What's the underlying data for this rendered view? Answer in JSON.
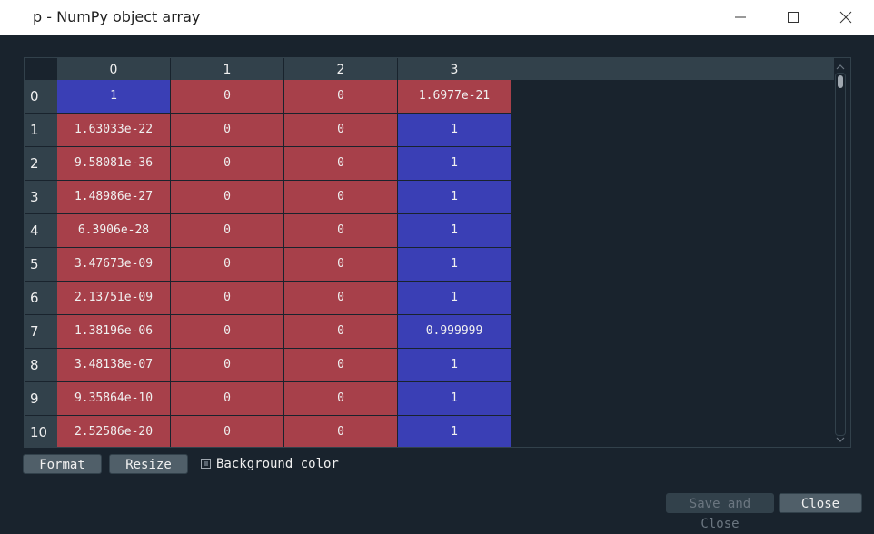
{
  "window": {
    "title": "p - NumPy object array"
  },
  "table": {
    "columns": [
      "0",
      "1",
      "2",
      "3"
    ],
    "rows": [
      {
        "index": "0",
        "cells": [
          {
            "v": "1",
            "c": "blue"
          },
          {
            "v": "0",
            "c": "red"
          },
          {
            "v": "0",
            "c": "red"
          },
          {
            "v": "1.6977e-21",
            "c": "red"
          }
        ]
      },
      {
        "index": "1",
        "cells": [
          {
            "v": "1.63033e-22",
            "c": "red"
          },
          {
            "v": "0",
            "c": "red"
          },
          {
            "v": "0",
            "c": "red"
          },
          {
            "v": "1",
            "c": "blue"
          }
        ]
      },
      {
        "index": "2",
        "cells": [
          {
            "v": "9.58081e-36",
            "c": "red"
          },
          {
            "v": "0",
            "c": "red"
          },
          {
            "v": "0",
            "c": "red"
          },
          {
            "v": "1",
            "c": "blue"
          }
        ]
      },
      {
        "index": "3",
        "cells": [
          {
            "v": "1.48986e-27",
            "c": "red"
          },
          {
            "v": "0",
            "c": "red"
          },
          {
            "v": "0",
            "c": "red"
          },
          {
            "v": "1",
            "c": "blue"
          }
        ]
      },
      {
        "index": "4",
        "cells": [
          {
            "v": "6.3906e-28",
            "c": "red"
          },
          {
            "v": "0",
            "c": "red"
          },
          {
            "v": "0",
            "c": "red"
          },
          {
            "v": "1",
            "c": "blue"
          }
        ]
      },
      {
        "index": "5",
        "cells": [
          {
            "v": "3.47673e-09",
            "c": "red"
          },
          {
            "v": "0",
            "c": "red"
          },
          {
            "v": "0",
            "c": "red"
          },
          {
            "v": "1",
            "c": "blue"
          }
        ]
      },
      {
        "index": "6",
        "cells": [
          {
            "v": "2.13751e-09",
            "c": "red"
          },
          {
            "v": "0",
            "c": "red"
          },
          {
            "v": "0",
            "c": "red"
          },
          {
            "v": "1",
            "c": "blue"
          }
        ]
      },
      {
        "index": "7",
        "cells": [
          {
            "v": "1.38196e-06",
            "c": "red"
          },
          {
            "v": "0",
            "c": "red"
          },
          {
            "v": "0",
            "c": "red"
          },
          {
            "v": "0.999999",
            "c": "blue"
          }
        ]
      },
      {
        "index": "8",
        "cells": [
          {
            "v": "3.48138e-07",
            "c": "red"
          },
          {
            "v": "0",
            "c": "red"
          },
          {
            "v": "0",
            "c": "red"
          },
          {
            "v": "1",
            "c": "blue"
          }
        ]
      },
      {
        "index": "9",
        "cells": [
          {
            "v": "9.35864e-10",
            "c": "red"
          },
          {
            "v": "0",
            "c": "red"
          },
          {
            "v": "0",
            "c": "red"
          },
          {
            "v": "1",
            "c": "blue"
          }
        ]
      },
      {
        "index": "10",
        "cells": [
          {
            "v": "2.52586e-20",
            "c": "red"
          },
          {
            "v": "0",
            "c": "red"
          },
          {
            "v": "0",
            "c": "red"
          },
          {
            "v": "1",
            "c": "blue"
          }
        ]
      }
    ]
  },
  "controls": {
    "format_label": "Format",
    "resize_label": "Resize",
    "background_color_label": "Background color",
    "save_close_label": "Save and Close",
    "close_label": "Close"
  },
  "icons": {
    "minimize": "minimize-icon",
    "maximize": "maximize-icon",
    "close": "close-icon"
  },
  "colors": {
    "background": "#19232d",
    "header": "#32414b",
    "low_value": "#a7404a",
    "high_value": "#3a3fb5"
  }
}
